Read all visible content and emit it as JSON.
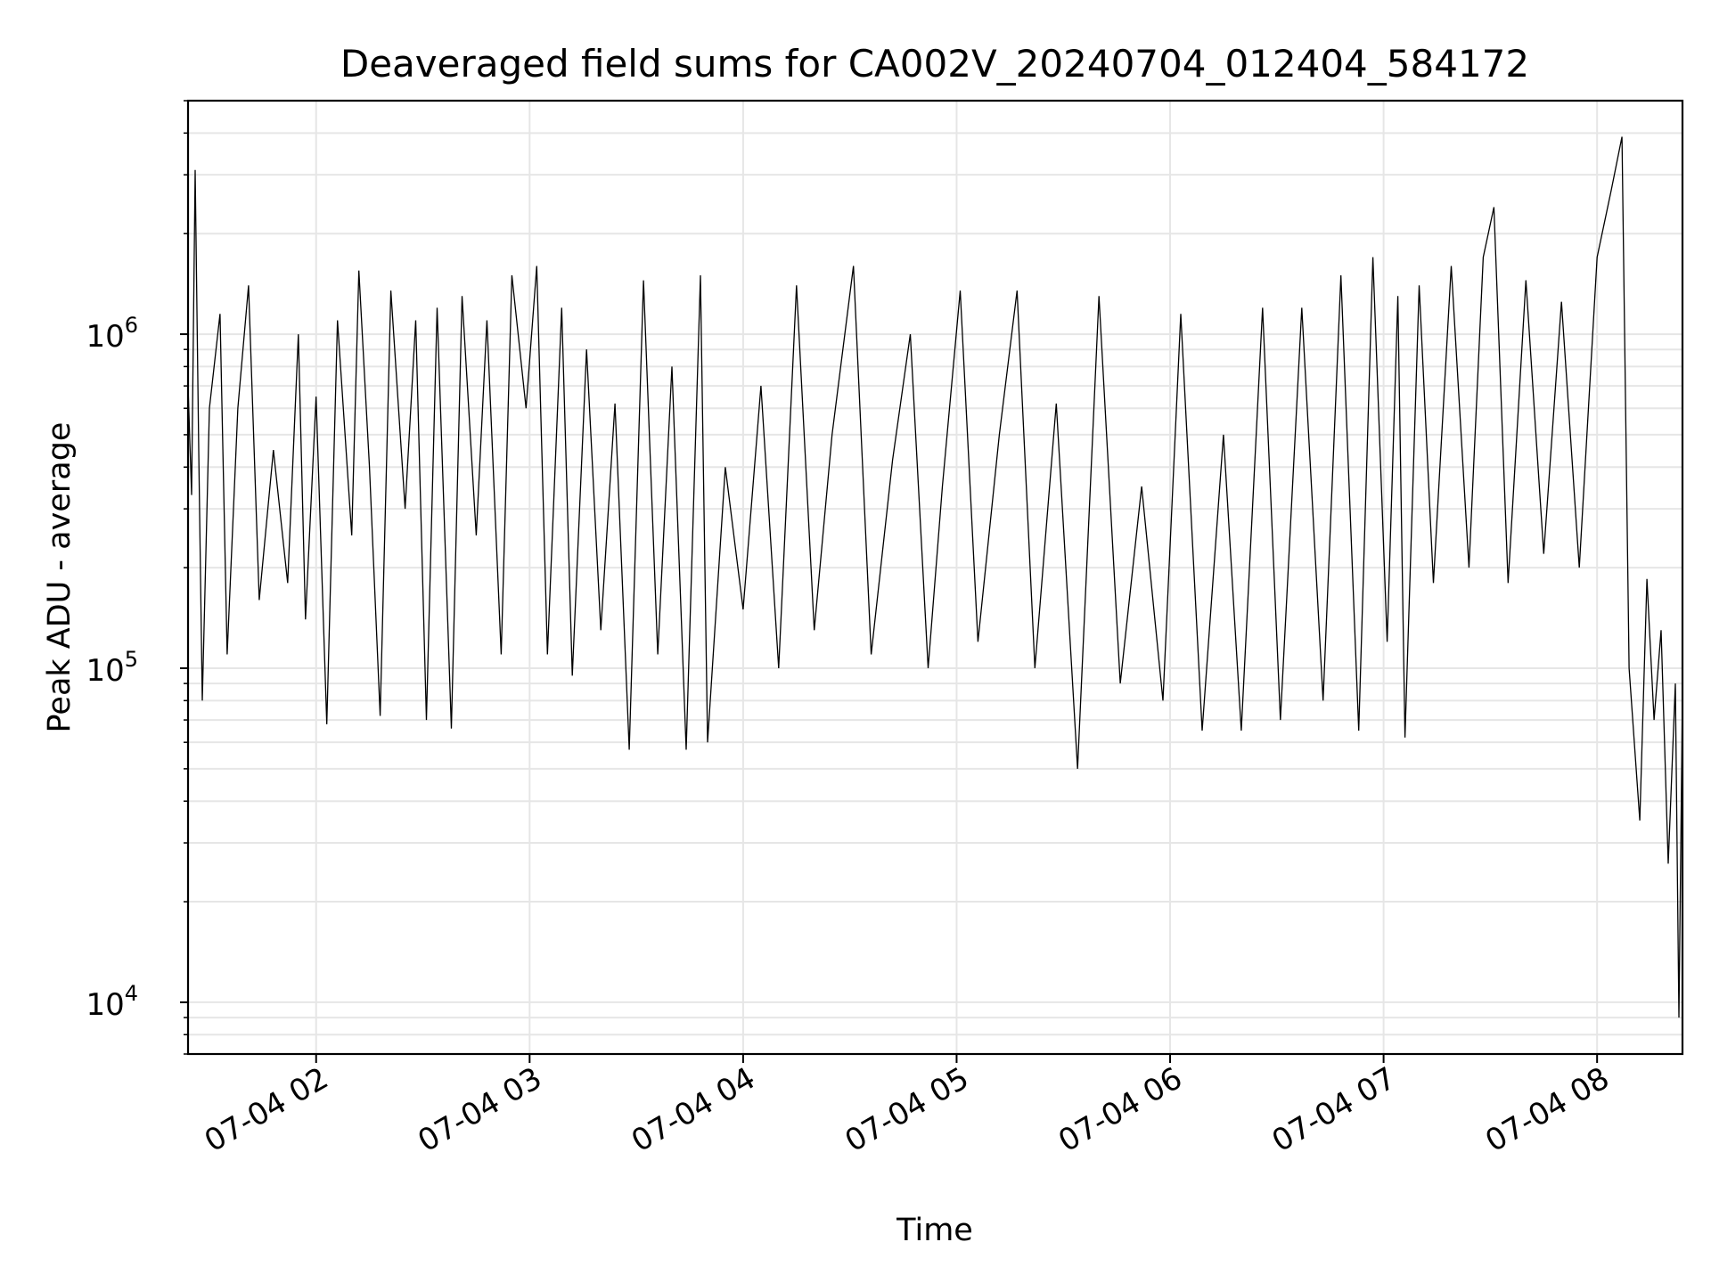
{
  "chart_data": {
    "type": "line",
    "title": "Deaveraged field sums for CA002V_20240704_012404_584172",
    "xlabel": "Time",
    "ylabel": "Peak ADU - average",
    "x_range": [
      "2024-07-04 01:24",
      "2024-07-04 08:24"
    ],
    "y_range": [
      7000,
      5000000
    ],
    "y_scale": "log",
    "grid": true,
    "line_color": "#000000",
    "grid_color": "#e6e6e6",
    "x_ticks": [
      {
        "value": "2024-07-04 02:00",
        "label": "07-04 02"
      },
      {
        "value": "2024-07-04 03:00",
        "label": "07-04 03"
      },
      {
        "value": "2024-07-04 04:00",
        "label": "07-04 04"
      },
      {
        "value": "2024-07-04 05:00",
        "label": "07-04 05"
      },
      {
        "value": "2024-07-04 06:00",
        "label": "07-04 06"
      },
      {
        "value": "2024-07-04 07:00",
        "label": "07-04 07"
      },
      {
        "value": "2024-07-04 08:00",
        "label": "07-04 08"
      }
    ],
    "y_ticks": [
      {
        "value": 10000,
        "base": "10",
        "exp": "4"
      },
      {
        "value": 100000,
        "base": "10",
        "exp": "5"
      },
      {
        "value": 1000000,
        "base": "10",
        "exp": "6"
      }
    ],
    "series": [
      {
        "points": [
          [
            "2024-07-04 01:24",
            700000
          ],
          [
            "2024-07-04 01:25",
            330000
          ],
          [
            "2024-07-04 01:26",
            3100000
          ],
          [
            "2024-07-04 01:27",
            450000
          ],
          [
            "2024-07-04 01:28",
            80000
          ],
          [
            "2024-07-04 01:30",
            600000
          ],
          [
            "2024-07-04 01:33",
            1150000
          ],
          [
            "2024-07-04 01:35",
            110000
          ],
          [
            "2024-07-04 01:38",
            600000
          ],
          [
            "2024-07-04 01:41",
            1400000
          ],
          [
            "2024-07-04 01:44",
            160000
          ],
          [
            "2024-07-04 01:48",
            450000
          ],
          [
            "2024-07-04 01:52",
            180000
          ],
          [
            "2024-07-04 01:55",
            1000000
          ],
          [
            "2024-07-04 01:57",
            140000
          ],
          [
            "2024-07-04 02:00",
            650000
          ],
          [
            "2024-07-04 02:03",
            68000
          ],
          [
            "2024-07-04 02:06",
            1100000
          ],
          [
            "2024-07-04 02:10",
            250000
          ],
          [
            "2024-07-04 02:12",
            1550000
          ],
          [
            "2024-07-04 02:15",
            400000
          ],
          [
            "2024-07-04 02:18",
            72000
          ],
          [
            "2024-07-04 02:21",
            1350000
          ],
          [
            "2024-07-04 02:25",
            300000
          ],
          [
            "2024-07-04 02:28",
            1100000
          ],
          [
            "2024-07-04 02:31",
            70000
          ],
          [
            "2024-07-04 02:34",
            1200000
          ],
          [
            "2024-07-04 02:38",
            66000
          ],
          [
            "2024-07-04 02:41",
            1300000
          ],
          [
            "2024-07-04 02:45",
            250000
          ],
          [
            "2024-07-04 02:48",
            1100000
          ],
          [
            "2024-07-04 02:52",
            110000
          ],
          [
            "2024-07-04 02:55",
            1500000
          ],
          [
            "2024-07-04 02:59",
            600000
          ],
          [
            "2024-07-04 03:02",
            1600000
          ],
          [
            "2024-07-04 03:05",
            110000
          ],
          [
            "2024-07-04 03:09",
            1200000
          ],
          [
            "2024-07-04 03:12",
            95000
          ],
          [
            "2024-07-04 03:16",
            900000
          ],
          [
            "2024-07-04 03:20",
            130000
          ],
          [
            "2024-07-04 03:24",
            620000
          ],
          [
            "2024-07-04 03:28",
            57000
          ],
          [
            "2024-07-04 03:32",
            1450000
          ],
          [
            "2024-07-04 03:36",
            110000
          ],
          [
            "2024-07-04 03:40",
            800000
          ],
          [
            "2024-07-04 03:44",
            57000
          ],
          [
            "2024-07-04 03:48",
            1500000
          ],
          [
            "2024-07-04 03:50",
            60000
          ],
          [
            "2024-07-04 03:55",
            400000
          ],
          [
            "2024-07-04 04:00",
            150000
          ],
          [
            "2024-07-04 04:05",
            700000
          ],
          [
            "2024-07-04 04:10",
            100000
          ],
          [
            "2024-07-04 04:15",
            1400000
          ],
          [
            "2024-07-04 04:20",
            130000
          ],
          [
            "2024-07-04 04:25",
            500000
          ],
          [
            "2024-07-04 04:31",
            1600000
          ],
          [
            "2024-07-04 04:36",
            110000
          ],
          [
            "2024-07-04 04:42",
            420000
          ],
          [
            "2024-07-04 04:47",
            1000000
          ],
          [
            "2024-07-04 04:52",
            100000
          ],
          [
            "2024-07-04 04:56",
            350000
          ],
          [
            "2024-07-04 05:01",
            1350000
          ],
          [
            "2024-07-04 05:06",
            120000
          ],
          [
            "2024-07-04 05:12",
            500000
          ],
          [
            "2024-07-04 05:17",
            1350000
          ],
          [
            "2024-07-04 05:22",
            100000
          ],
          [
            "2024-07-04 05:28",
            620000
          ],
          [
            "2024-07-04 05:34",
            50000
          ],
          [
            "2024-07-04 05:40",
            1300000
          ],
          [
            "2024-07-04 05:46",
            90000
          ],
          [
            "2024-07-04 05:52",
            350000
          ],
          [
            "2024-07-04 05:58",
            80000
          ],
          [
            "2024-07-04 06:03",
            1150000
          ],
          [
            "2024-07-04 06:09",
            65000
          ],
          [
            "2024-07-04 06:15",
            500000
          ],
          [
            "2024-07-04 06:20",
            65000
          ],
          [
            "2024-07-04 06:26",
            1200000
          ],
          [
            "2024-07-04 06:31",
            70000
          ],
          [
            "2024-07-04 06:37",
            1200000
          ],
          [
            "2024-07-04 06:43",
            80000
          ],
          [
            "2024-07-04 06:48",
            1500000
          ],
          [
            "2024-07-04 06:53",
            65000
          ],
          [
            "2024-07-04 06:57",
            1700000
          ],
          [
            "2024-07-04 07:01",
            120000
          ],
          [
            "2024-07-04 07:04",
            1300000
          ],
          [
            "2024-07-04 07:06",
            62000
          ],
          [
            "2024-07-04 07:10",
            1400000
          ],
          [
            "2024-07-04 07:14",
            180000
          ],
          [
            "2024-07-04 07:19",
            1600000
          ],
          [
            "2024-07-04 07:24",
            200000
          ],
          [
            "2024-07-04 07:28",
            1700000
          ],
          [
            "2024-07-04 07:31",
            2400000
          ],
          [
            "2024-07-04 07:35",
            180000
          ],
          [
            "2024-07-04 07:40",
            1450000
          ],
          [
            "2024-07-04 07:45",
            220000
          ],
          [
            "2024-07-04 07:50",
            1250000
          ],
          [
            "2024-07-04 07:55",
            200000
          ],
          [
            "2024-07-04 08:00",
            1700000
          ],
          [
            "2024-07-04 08:04",
            2700000
          ],
          [
            "2024-07-04 08:07",
            3900000
          ],
          [
            "2024-07-04 08:09",
            100000
          ],
          [
            "2024-07-04 08:12",
            35000
          ],
          [
            "2024-07-04 08:14",
            185000
          ],
          [
            "2024-07-04 08:16",
            70000
          ],
          [
            "2024-07-04 08:18",
            130000
          ],
          [
            "2024-07-04 08:20",
            26000
          ],
          [
            "2024-07-04 08:22",
            90000
          ],
          [
            "2024-07-04 08:23",
            9000
          ],
          [
            "2024-07-04 08:24",
            85000
          ]
        ]
      }
    ]
  }
}
